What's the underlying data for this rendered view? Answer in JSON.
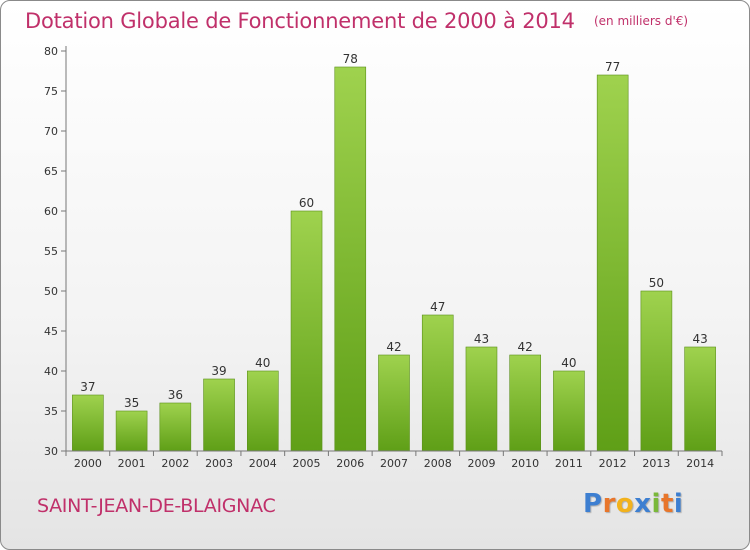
{
  "header": {
    "title": "Dotation Globale de Fonctionnement de 2000 à 2014",
    "subtitle": "(en milliers d'€)"
  },
  "footer": {
    "commune": "SAINT-JEAN-DE-BLAIGNAC",
    "logo_letters": [
      "P",
      "r",
      "o",
      "x",
      "i",
      "t",
      "i"
    ]
  },
  "colors": {
    "title": "#c0306a",
    "bar_top": "#9fd24e",
    "bar_bottom": "#5f9f17",
    "logo": [
      "#3d7fd1",
      "#e8762b",
      "#f2b21c",
      "#3d7fd1",
      "#7ab83a",
      "#e8762b",
      "#3d7fd1"
    ]
  },
  "chart_data": {
    "type": "bar",
    "title": "Dotation Globale de Fonctionnement de 2000 à 2014",
    "subtitle": "(en milliers d'€)",
    "xlabel": "",
    "ylabel": "",
    "categories": [
      "2000",
      "2001",
      "2002",
      "2003",
      "2004",
      "2005",
      "2006",
      "2007",
      "2008",
      "2009",
      "2010",
      "2011",
      "2012",
      "2013",
      "2014"
    ],
    "values": [
      37,
      35,
      36,
      39,
      40,
      60,
      78,
      42,
      47,
      43,
      42,
      40,
      77,
      50,
      43
    ],
    "ylim": [
      30,
      80
    ],
    "yticks": [
      30,
      35,
      40,
      45,
      50,
      55,
      60,
      65,
      70,
      75,
      80
    ],
    "grid": false,
    "data_labels": true
  }
}
